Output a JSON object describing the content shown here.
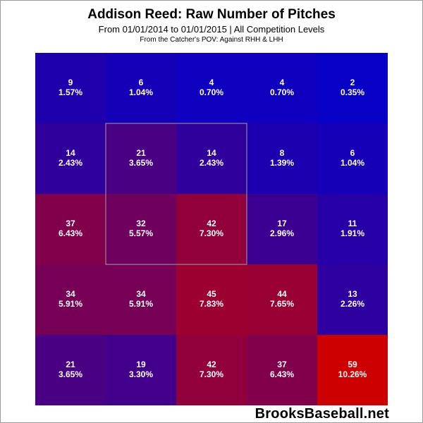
{
  "header": {
    "title": "Addison Reed: Raw Number of Pitches",
    "subtitle": "From 01/01/2014 to 01/01/2015 | All Competition Levels",
    "caption": "From the Catcher's POV:  Against RHH & LHH"
  },
  "footer": {
    "brand": "BrooksBaseball.net"
  },
  "colors": {
    "low": "#0000cc",
    "high": "#cc0000",
    "zone_border": "#a0a0a0"
  },
  "chart_data": {
    "type": "heatmap",
    "rows": 5,
    "cols": 5,
    "strike_zone": {
      "rows": [
        1,
        3
      ],
      "cols": [
        1,
        3
      ]
    },
    "cells": [
      [
        {
          "count": 9,
          "pct": "1.57%"
        },
        {
          "count": 6,
          "pct": "1.04%"
        },
        {
          "count": 4,
          "pct": "0.70%"
        },
        {
          "count": 4,
          "pct": "0.70%"
        },
        {
          "count": 2,
          "pct": "0.35%"
        }
      ],
      [
        {
          "count": 14,
          "pct": "2.43%"
        },
        {
          "count": 21,
          "pct": "3.65%"
        },
        {
          "count": 14,
          "pct": "2.43%"
        },
        {
          "count": 8,
          "pct": "1.39%"
        },
        {
          "count": 6,
          "pct": "1.04%"
        }
      ],
      [
        {
          "count": 37,
          "pct": "6.43%"
        },
        {
          "count": 32,
          "pct": "5.57%"
        },
        {
          "count": 42,
          "pct": "7.30%"
        },
        {
          "count": 17,
          "pct": "2.96%"
        },
        {
          "count": 11,
          "pct": "1.91%"
        }
      ],
      [
        {
          "count": 34,
          "pct": "5.91%"
        },
        {
          "count": 34,
          "pct": "5.91%"
        },
        {
          "count": 45,
          "pct": "7.83%"
        },
        {
          "count": 44,
          "pct": "7.65%"
        },
        {
          "count": 13,
          "pct": "2.26%"
        }
      ],
      [
        {
          "count": 21,
          "pct": "3.65%"
        },
        {
          "count": 19,
          "pct": "3.30%"
        },
        {
          "count": 42,
          "pct": "7.30%"
        },
        {
          "count": 37,
          "pct": "6.43%"
        },
        {
          "count": 59,
          "pct": "10.26%"
        }
      ]
    ]
  }
}
